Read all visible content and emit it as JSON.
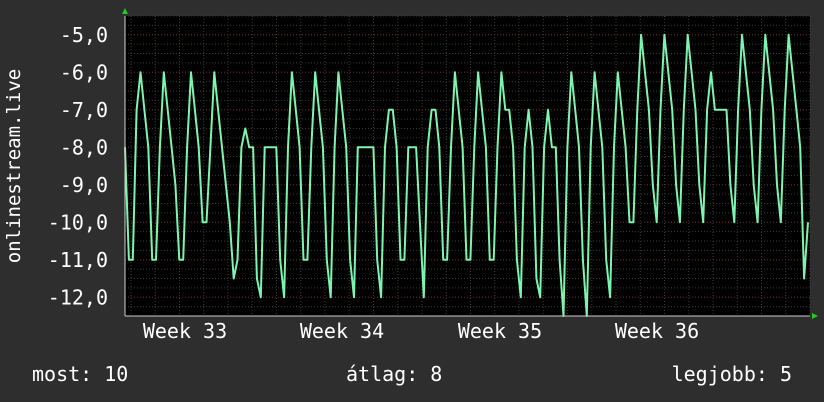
{
  "chart_data": {
    "type": "line",
    "ylabel": "onlinestream.live",
    "ylim": [
      -12.5,
      -4.5
    ],
    "y_ticks": [
      -5.0,
      -6.0,
      -7.0,
      -8.0,
      -9.0,
      -10.0,
      -11.0,
      -12.0
    ],
    "y_tick_labels": [
      "-5,0",
      "-6,0",
      "-7,0",
      "-8,0",
      "-9,0",
      "-10,0",
      "-11,0",
      "-12,0"
    ],
    "x_labels": [
      "Week 33",
      "Week 34",
      "Week 35",
      "Week 36"
    ],
    "grid": true,
    "colors": {
      "line": "#7df5b0",
      "background": "#000000",
      "grid_minor": "#3a3a3a",
      "grid_major": "#6b1f1f",
      "axis_arrow": "#22cc22"
    },
    "series": [
      {
        "values": [
          -8.0,
          -11.0,
          -11.0,
          -7.0,
          -6.0,
          -7.0,
          -8.0,
          -11.0,
          -11.0,
          -8.0,
          -6.0,
          -7.0,
          -8.0,
          -9.0,
          -11.0,
          -11.0,
          -8.0,
          -6.0,
          -7.0,
          -8.0,
          -10.0,
          -10.0,
          -8.0,
          -6.0,
          -7.0,
          -8.0,
          -9.0,
          -10.0,
          -11.5,
          -11.0,
          -8.0,
          -7.5,
          -8.0,
          -8.0,
          -11.5,
          -12.0,
          -8.0,
          -8.0,
          -8.0,
          -8.0,
          -11.0,
          -12.0,
          -8.0,
          -6.0,
          -7.0,
          -8.0,
          -11.0,
          -11.0,
          -8.0,
          -6.0,
          -7.0,
          -8.0,
          -11.0,
          -12.0,
          -8.0,
          -6.0,
          -7.0,
          -8.0,
          -11.0,
          -12.0,
          -8.0,
          -8.0,
          -8.0,
          -8.0,
          -8.0,
          -11.0,
          -12.0,
          -8.0,
          -7.0,
          -7.0,
          -8.0,
          -11.0,
          -11.0,
          -8.0,
          -8.0,
          -8.0,
          -10.0,
          -12.0,
          -8.0,
          -7.0,
          -7.0,
          -8.0,
          -11.0,
          -11.0,
          -8.0,
          -6.0,
          -7.0,
          -8.0,
          -11.0,
          -11.0,
          -8.0,
          -6.0,
          -7.0,
          -8.0,
          -11.0,
          -11.0,
          -8.0,
          -6.0,
          -7.0,
          -7.0,
          -8.0,
          -11.0,
          -12.0,
          -8.0,
          -7.0,
          -8.0,
          -11.5,
          -12.0,
          -8.0,
          -7.0,
          -8.0,
          -8.0,
          -11.0,
          -12.5,
          -8.0,
          -6.0,
          -7.0,
          -8.0,
          -11.0,
          -12.5,
          -8.0,
          -6.0,
          -7.0,
          -8.0,
          -11.0,
          -12.0,
          -8.0,
          -6.0,
          -7.0,
          -8.0,
          -10.0,
          -10.0,
          -7.0,
          -5.0,
          -6.0,
          -7.0,
          -9.0,
          -10.0,
          -7.0,
          -5.0,
          -6.0,
          -7.0,
          -9.0,
          -10.0,
          -7.0,
          -5.0,
          -6.0,
          -7.0,
          -9.0,
          -10.0,
          -7.0,
          -6.0,
          -7.0,
          -7.0,
          -7.0,
          -7.0,
          -9.0,
          -10.0,
          -7.0,
          -5.0,
          -6.0,
          -7.0,
          -9.0,
          -10.0,
          -7.0,
          -5.0,
          -6.0,
          -7.0,
          -9.0,
          -10.0,
          -7.0,
          -5.0,
          -6.0,
          -7.0,
          -8.0,
          -11.5,
          -10.0
        ]
      }
    ]
  },
  "stats": {
    "now_label": "most: 10",
    "avg_label": "átlag: 8",
    "max_label": "legjobb: 5"
  }
}
